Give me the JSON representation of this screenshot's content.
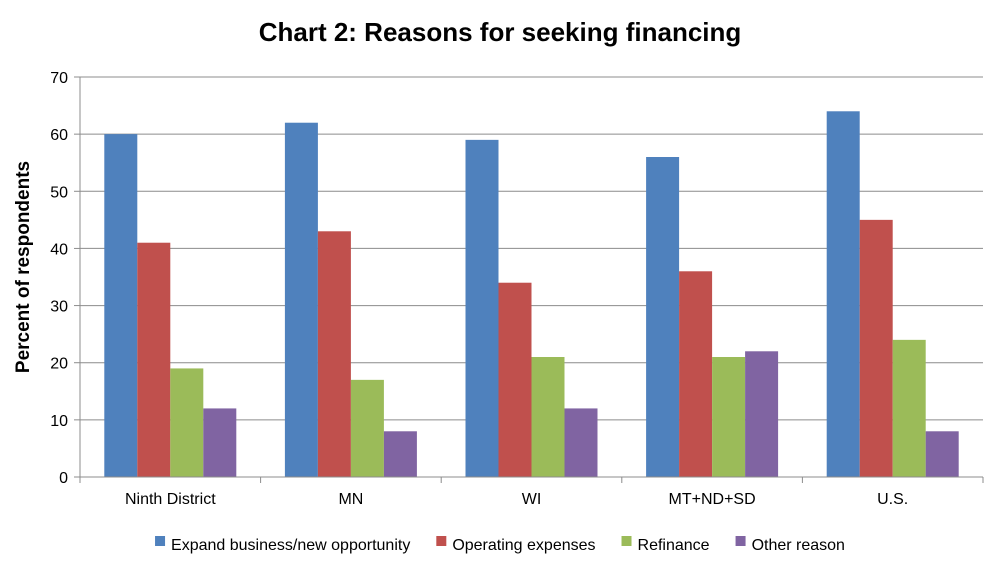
{
  "chart_data": {
    "type": "bar",
    "title": "Chart 2: Reasons for seeking financing",
    "xlabel": "",
    "ylabel": "Percent of respondents",
    "ylim": [
      0,
      70
    ],
    "yticks": [
      0,
      10,
      20,
      30,
      40,
      50,
      60,
      70
    ],
    "grid": true,
    "legend_position": "bottom",
    "categories": [
      "Ninth District",
      "MN",
      "WI",
      "MT+ND+SD",
      "U.S."
    ],
    "series": [
      {
        "name": "Expand business/new opportunity",
        "color": "#4F81BD",
        "values": [
          60,
          62,
          59,
          56,
          64
        ]
      },
      {
        "name": "Operating expenses",
        "color": "#C0504D",
        "values": [
          41,
          43,
          34,
          36,
          45
        ]
      },
      {
        "name": "Refinance",
        "color": "#9BBB59",
        "values": [
          19,
          17,
          21,
          21,
          24
        ]
      },
      {
        "name": "Other reason",
        "color": "#8064A2",
        "values": [
          12,
          8,
          12,
          22,
          8
        ]
      }
    ]
  }
}
